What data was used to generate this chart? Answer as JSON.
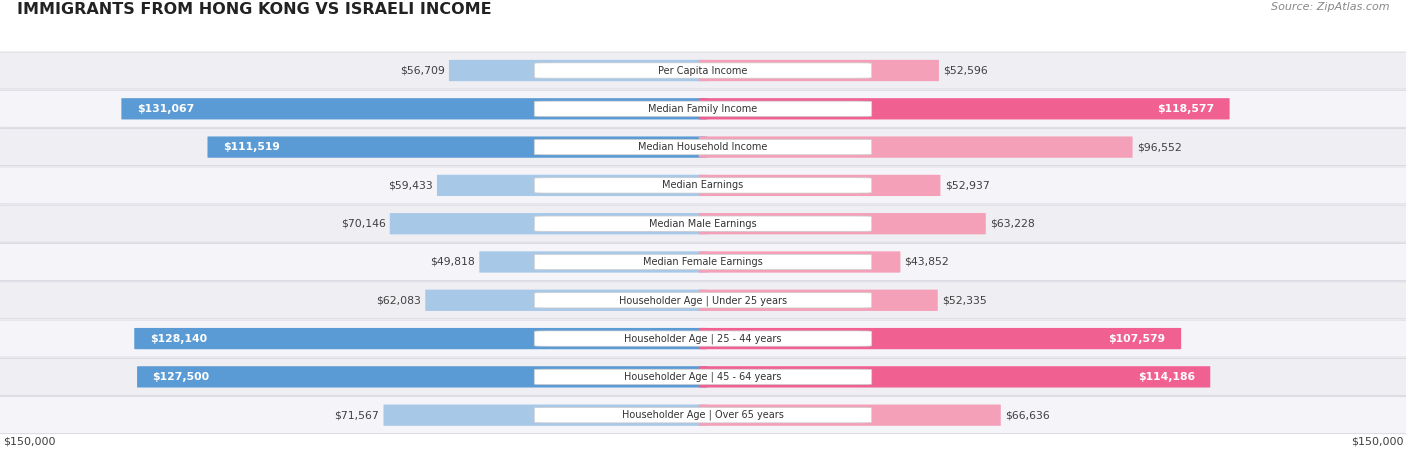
{
  "title": "IMMIGRANTS FROM HONG KONG VS ISRAELI INCOME",
  "source": "Source: ZipAtlas.com",
  "categories": [
    "Per Capita Income",
    "Median Family Income",
    "Median Household Income",
    "Median Earnings",
    "Median Male Earnings",
    "Median Female Earnings",
    "Householder Age | Under 25 years",
    "Householder Age | 25 - 44 years",
    "Householder Age | 45 - 64 years",
    "Householder Age | Over 65 years"
  ],
  "hk_values": [
    56709,
    131067,
    111519,
    59433,
    70146,
    49818,
    62083,
    128140,
    127500,
    71567
  ],
  "israeli_values": [
    52596,
    118577,
    96552,
    52937,
    63228,
    43852,
    52335,
    107579,
    114186,
    66636
  ],
  "hk_color_light": "#a8c8e8",
  "hk_color_dark": "#5b9bd5",
  "israeli_color_light": "#f4a0b8",
  "israeli_color_dark": "#f06090",
  "max_value": 150000,
  "bg_color": "#ffffff"
}
